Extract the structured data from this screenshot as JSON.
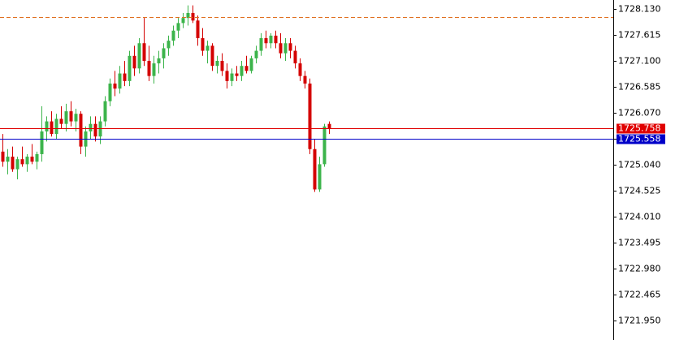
{
  "chart_data": {
    "type": "candlestick",
    "ylim": [
      1721.564,
      1728.307
    ],
    "yticks": [
      {
        "value": 1728.13,
        "label": "1728.130"
      },
      {
        "value": 1727.615,
        "label": "1727.615"
      },
      {
        "value": 1727.1,
        "label": "1727.100"
      },
      {
        "value": 1726.585,
        "label": "1726.585"
      },
      {
        "value": 1726.07,
        "label": "1726.070"
      },
      {
        "value": 1725.555,
        "label": "1725.555"
      },
      {
        "value": 1725.04,
        "label": "1725.040"
      },
      {
        "value": 1724.525,
        "label": "1724.525"
      },
      {
        "value": 1724.01,
        "label": "1724.010"
      },
      {
        "value": 1723.495,
        "label": "1723.495"
      },
      {
        "value": 1722.98,
        "label": "1722.980"
      },
      {
        "value": 1722.465,
        "label": "1722.465"
      },
      {
        "value": 1721.95,
        "label": "1721.950"
      }
    ],
    "up_color": "#3cb44b",
    "down_color": "#d40000",
    "open": [
      1725.3,
      1725.1,
      1725.2,
      1724.95,
      1725.15,
      1725.05,
      1725.2,
      1725.1,
      1725.25,
      1725.7,
      1725.9,
      1725.65,
      1725.95,
      1725.85,
      1726.1,
      1725.9,
      1726.05,
      1725.4,
      1725.7,
      1725.85,
      1725.6,
      1725.9,
      1726.3,
      1726.65,
      1726.55,
      1726.85,
      1726.7,
      1727.2,
      1726.95,
      1727.45,
      1727.1,
      1726.8,
      1727.05,
      1727.15,
      1727.35,
      1727.5,
      1727.7,
      1727.85,
      1727.95,
      1728.05,
      1727.9,
      1727.55,
      1727.3,
      1727.4,
      1727.0,
      1727.1,
      1726.9,
      1726.7,
      1726.85,
      1726.8,
      1727.0,
      1726.9,
      1727.15,
      1727.3,
      1727.55,
      1727.45,
      1727.6,
      1727.45,
      1727.25,
      1727.45,
      1727.3,
      1727.05,
      1726.8,
      1726.65,
      1725.35,
      1724.55,
      1725.05,
      1725.85
    ],
    "high": [
      1725.65,
      1725.35,
      1725.4,
      1725.2,
      1725.4,
      1725.25,
      1725.45,
      1725.3,
      1726.2,
      1726.0,
      1726.1,
      1726.05,
      1726.2,
      1726.25,
      1726.3,
      1726.15,
      1726.1,
      1725.8,
      1726.0,
      1726.0,
      1726.0,
      1726.4,
      1726.75,
      1726.9,
      1727.0,
      1727.1,
      1727.3,
      1727.4,
      1727.55,
      1727.95,
      1727.4,
      1727.2,
      1727.3,
      1727.45,
      1727.6,
      1727.8,
      1727.95,
      1728.05,
      1728.2,
      1728.2,
      1728.0,
      1727.75,
      1727.5,
      1727.45,
      1727.2,
      1727.25,
      1727.05,
      1726.95,
      1727.0,
      1727.1,
      1727.2,
      1727.2,
      1727.4,
      1727.65,
      1727.7,
      1727.65,
      1727.7,
      1727.65,
      1727.55,
      1727.55,
      1727.4,
      1727.15,
      1726.9,
      1726.75,
      1725.55,
      1725.2,
      1725.85,
      1725.9
    ],
    "low": [
      1725.0,
      1724.85,
      1724.9,
      1724.75,
      1725.0,
      1724.9,
      1725.05,
      1724.95,
      1725.1,
      1725.5,
      1725.6,
      1725.55,
      1725.75,
      1725.7,
      1725.8,
      1725.7,
      1725.25,
      1725.2,
      1725.55,
      1725.5,
      1725.45,
      1725.8,
      1726.2,
      1726.4,
      1726.45,
      1726.6,
      1726.6,
      1726.8,
      1726.85,
      1727.0,
      1726.7,
      1726.65,
      1726.85,
      1726.95,
      1727.2,
      1727.4,
      1727.55,
      1727.75,
      1727.8,
      1727.85,
      1727.4,
      1727.2,
      1727.05,
      1726.9,
      1726.85,
      1726.8,
      1726.55,
      1726.6,
      1726.7,
      1726.7,
      1726.85,
      1726.85,
      1727.05,
      1727.2,
      1727.35,
      1727.35,
      1727.35,
      1727.15,
      1727.1,
      1727.15,
      1726.95,
      1726.7,
      1726.55,
      1725.25,
      1724.5,
      1724.5,
      1725.0,
      1725.65
    ],
    "close": [
      1725.1,
      1725.2,
      1724.95,
      1725.15,
      1725.05,
      1725.2,
      1725.1,
      1725.25,
      1725.7,
      1725.9,
      1725.65,
      1725.95,
      1725.85,
      1726.1,
      1725.9,
      1726.05,
      1725.4,
      1725.7,
      1725.85,
      1725.6,
      1725.9,
      1726.3,
      1726.65,
      1726.55,
      1726.85,
      1726.7,
      1727.2,
      1726.95,
      1727.45,
      1727.1,
      1726.8,
      1727.05,
      1727.15,
      1727.35,
      1727.5,
      1727.7,
      1727.85,
      1727.95,
      1728.05,
      1727.9,
      1727.55,
      1727.3,
      1727.4,
      1727.0,
      1727.1,
      1726.9,
      1726.7,
      1726.85,
      1726.8,
      1727.0,
      1726.9,
      1727.15,
      1727.3,
      1727.55,
      1727.45,
      1727.6,
      1727.45,
      1727.25,
      1727.45,
      1727.3,
      1727.05,
      1726.8,
      1726.65,
      1725.35,
      1724.55,
      1725.05,
      1725.8,
      1725.758
    ],
    "dashed_level": 1727.97,
    "dashed_color": "#e07020",
    "bid": 1725.758,
    "bid_color": "#e00000",
    "ask": 1725.558,
    "ask_color": "#0000c8"
  }
}
